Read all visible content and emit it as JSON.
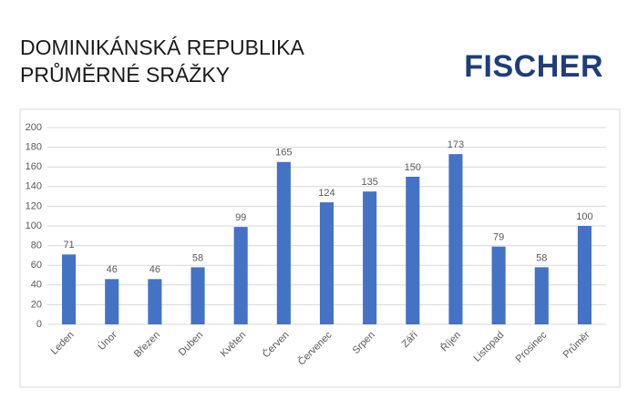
{
  "logo": "FISCHER",
  "chart_data": {
    "type": "bar",
    "title": "DOMINIKÁNSKÁ REPUBLIKA",
    "subtitle": "PRŮMĚRNÉ SRÁŽKY",
    "categories": [
      "Leden",
      "Únor",
      "Březen",
      "Duben",
      "Květen",
      "Červen",
      "Červenec",
      "Srpen",
      "Září",
      "Říjen",
      "Listopad",
      "Prosinec",
      "Průměr"
    ],
    "values": [
      71,
      46,
      46,
      58,
      99,
      165,
      124,
      135,
      150,
      173,
      79,
      58,
      100
    ],
    "color": "#4472c4",
    "ylim": [
      0,
      200
    ],
    "yticks": [
      0,
      20,
      40,
      60,
      80,
      100,
      120,
      140,
      160,
      180,
      200
    ],
    "grid": true
  }
}
